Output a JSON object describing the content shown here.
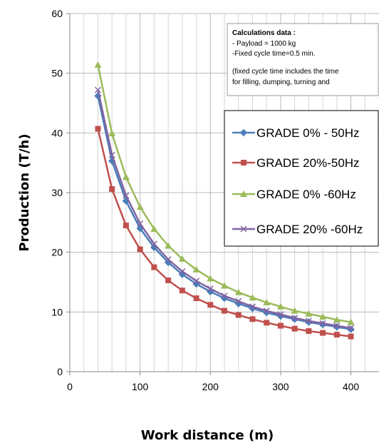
{
  "chart_data": {
    "type": "line",
    "xlabel": "Work distance (m)",
    "ylabel": "Production (T/h)",
    "xlim": [
      0,
      440
    ],
    "ylim": [
      0,
      60
    ],
    "xticks": [
      0,
      100,
      200,
      300,
      400
    ],
    "xtick_labels": [
      "0",
      "100",
      "200",
      "300",
      "400"
    ],
    "yticks": [
      0,
      10,
      20,
      30,
      40,
      50,
      60
    ],
    "ytick_labels": [
      "0",
      "10",
      "20",
      "30",
      "40",
      "50",
      "60"
    ],
    "grid": true,
    "legend_position": "right",
    "x": [
      40,
      60,
      80,
      100,
      120,
      140,
      160,
      180,
      200,
      220,
      240,
      260,
      280,
      300,
      320,
      340,
      360,
      380,
      400
    ],
    "series": [
      {
        "name": "GRADE 0% - 50Hz",
        "color": "#4a7ebb",
        "marker": "diamond",
        "values": [
          46.2,
          35.3,
          28.6,
          24.0,
          20.8,
          18.3,
          16.3,
          14.7,
          13.4,
          12.3,
          11.4,
          10.6,
          9.9,
          9.3,
          8.8,
          8.3,
          7.9,
          7.5,
          7.1
        ]
      },
      {
        "name": "GRADE 20%-50Hz",
        "color": "#c0504d",
        "marker": "square",
        "values": [
          40.7,
          30.6,
          24.5,
          20.5,
          17.5,
          15.3,
          13.6,
          12.3,
          11.2,
          10.2,
          9.5,
          8.8,
          8.2,
          7.7,
          7.2,
          6.8,
          6.5,
          6.2,
          5.9
        ]
      },
      {
        "name": "GRADE 0% -60Hz",
        "color": "#9bbb59",
        "marker": "triangle",
        "values": [
          51.4,
          39.9,
          32.6,
          27.6,
          23.9,
          21.1,
          18.9,
          17.1,
          15.6,
          14.4,
          13.3,
          12.4,
          11.6,
          10.9,
          10.2,
          9.7,
          9.2,
          8.7,
          8.3
        ]
      },
      {
        "name": "GRADE 20% -60Hz",
        "color": "#8064a2",
        "marker": "x",
        "values": [
          47.2,
          36.3,
          29.5,
          24.8,
          21.4,
          18.8,
          16.8,
          15.2,
          13.9,
          12.7,
          11.8,
          10.9,
          10.2,
          9.6,
          9.0,
          8.5,
          8.1,
          7.7,
          7.3
        ]
      }
    ],
    "annotation": {
      "title": "Calculations data :",
      "lines": [
        "- Payload = 1000 kg",
        "-Fixed cycle time=0.5 min.",
        "(fixed cycle time includes the time",
        "for filling, dumping, turning and"
      ]
    }
  }
}
